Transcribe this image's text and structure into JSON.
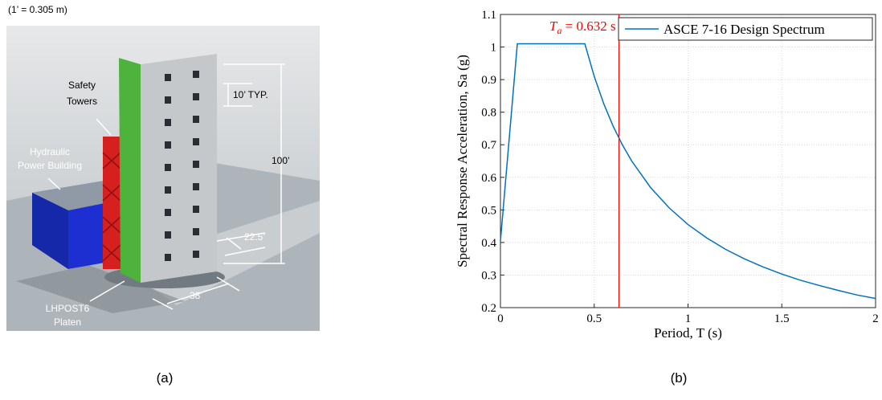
{
  "figure_a": {
    "scale_note": "(1’ = 0.305 m)",
    "safety_towers": [
      "Safety",
      "Towers"
    ],
    "hydraulic_building": [
      "Hydraulic",
      "Power Building"
    ],
    "typical_story": "10’ TYP.",
    "height": "100’",
    "width": "22.5’",
    "length": "38’",
    "platen": [
      "LHPOST6",
      "Platen"
    ],
    "caption": "(a)"
  },
  "chart_data": {
    "type": "line",
    "xlabel": "Period, T (s)",
    "ylabel": "Spectral Response Acceleration, Sa (g)",
    "x": [
      0,
      0.09,
      0.45,
      0.5,
      0.55,
      0.6,
      0.65,
      0.7,
      0.8,
      0.9,
      1.0,
      1.1,
      1.2,
      1.3,
      1.4,
      1.5,
      1.6,
      1.7,
      1.8,
      1.9,
      2.0
    ],
    "series": [
      {
        "name": "ASCE 7-16 Design Spectrum",
        "color": "#0072bd",
        "values": [
          0.404,
          1.01,
          1.01,
          0.91,
          0.827,
          0.758,
          0.7,
          0.65,
          0.569,
          0.506,
          0.455,
          0.414,
          0.379,
          0.35,
          0.325,
          0.303,
          0.284,
          0.268,
          0.253,
          0.239,
          0.228
        ]
      }
    ],
    "xlim": [
      0,
      2
    ],
    "ylim": [
      0.2,
      1.1
    ],
    "xticks": [
      0,
      0.5,
      1,
      1.5,
      2
    ],
    "yticks": [
      0.2,
      0.3,
      0.4,
      0.5,
      0.6,
      0.7,
      0.8,
      0.9,
      1,
      1.1
    ],
    "grid": true,
    "legend": "top-right",
    "annotations": [
      {
        "x": 0.632,
        "symbol": "T",
        "subscript": "a",
        "text": " = 0.632 s",
        "color": "#ff0000"
      }
    ],
    "caption": "(b)"
  }
}
